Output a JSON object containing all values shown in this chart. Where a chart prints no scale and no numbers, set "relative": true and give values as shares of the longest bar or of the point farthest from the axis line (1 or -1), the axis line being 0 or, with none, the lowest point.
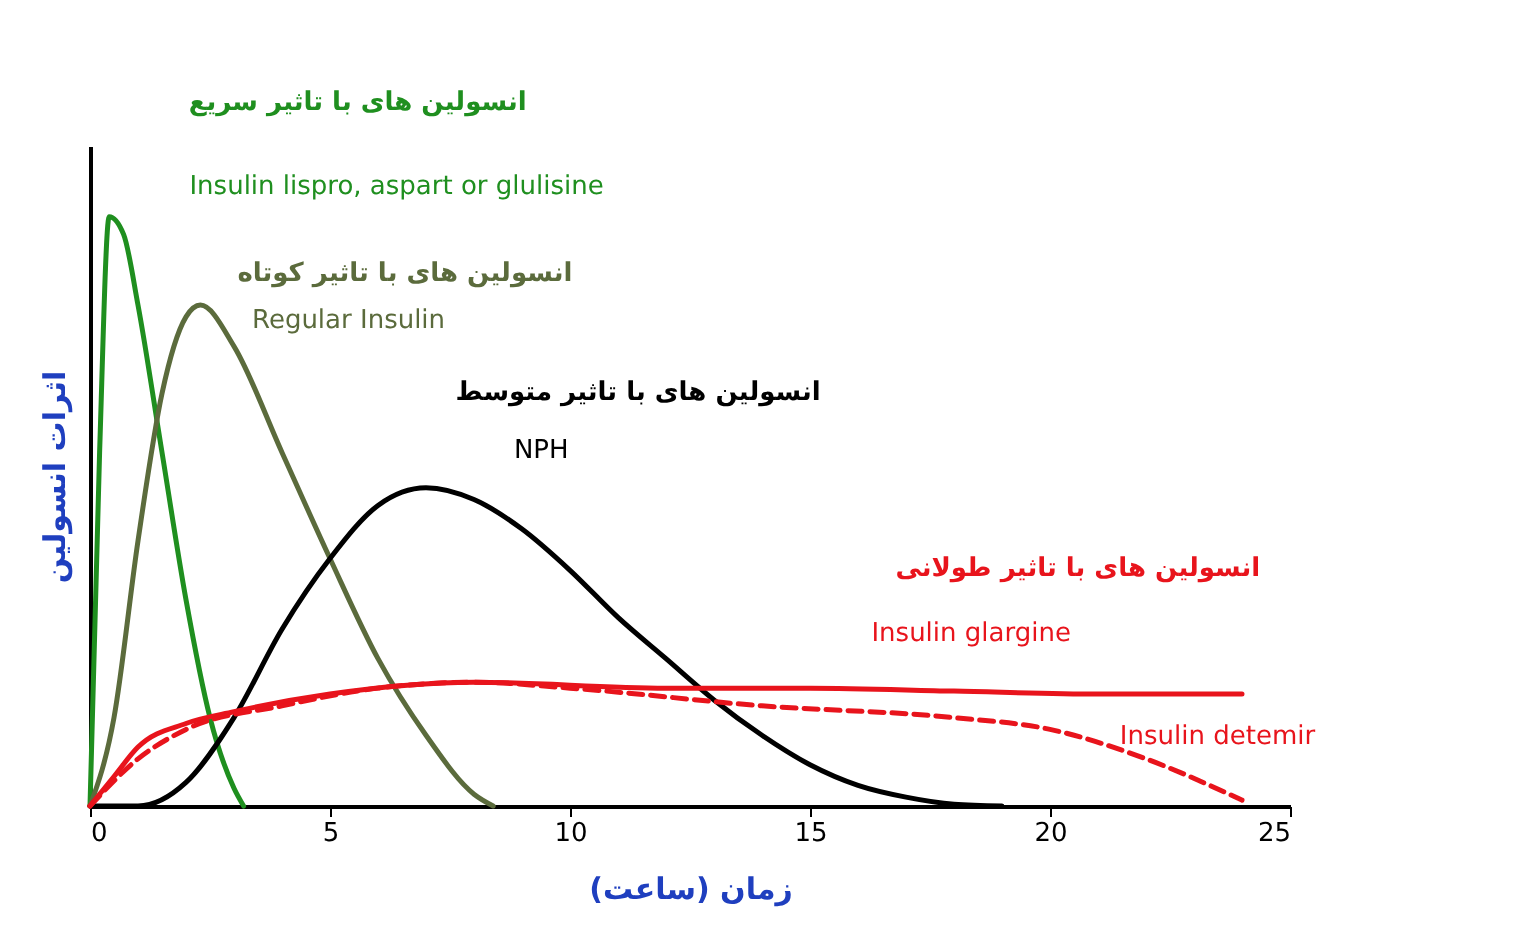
{
  "chart_data": {
    "type": "line",
    "relative": true,
    "xlabel": "زمان (ساعت)",
    "ylabel": "اثرات انسولین",
    "xlim": [
      0,
      25
    ],
    "xticks": [
      0,
      5,
      10,
      15,
      20,
      25
    ],
    "grid": false,
    "marker": "none",
    "series": [
      {
        "name": "Insulin lispro, aspart or glulisine",
        "color": "#1f8f1f",
        "line_style": "solid",
        "x": [
          0,
          0.2,
          0.4,
          0.7,
          1,
          1.5,
          2,
          2.5,
          3,
          3.2
        ],
        "values": [
          0,
          0.6,
          1.0,
          0.97,
          0.85,
          0.6,
          0.35,
          0.15,
          0.03,
          0
        ]
      },
      {
        "name": "Regular Insulin",
        "color": "#5b6b3c",
        "line_style": "solid",
        "x": [
          0,
          0.5,
          1,
          1.5,
          2,
          2.3,
          3,
          4,
          5,
          6,
          7,
          8,
          8.4
        ],
        "values": [
          0,
          0.15,
          0.45,
          0.7,
          0.83,
          0.85,
          0.78,
          0.6,
          0.42,
          0.25,
          0.12,
          0.02,
          0
        ]
      },
      {
        "name": "NPH",
        "color": "#000000",
        "line_style": "solid",
        "x": [
          0,
          1,
          2,
          3,
          4,
          5,
          6,
          7,
          8,
          9,
          10,
          11,
          12,
          13,
          14,
          15,
          16,
          17,
          18,
          19
        ],
        "values": [
          0,
          0,
          0.04,
          0.15,
          0.3,
          0.42,
          0.51,
          0.54,
          0.52,
          0.47,
          0.4,
          0.32,
          0.25,
          0.18,
          0.12,
          0.07,
          0.035,
          0.015,
          0.003,
          0
        ]
      },
      {
        "name": "Insulin glargine",
        "color": "#e8141c",
        "line_style": "solid",
        "x": [
          0,
          0.5,
          1,
          2,
          3,
          5,
          8,
          12,
          15,
          18,
          21,
          24
        ],
        "values": [
          0,
          0.05,
          0.1,
          0.14,
          0.16,
          0.19,
          0.21,
          0.2,
          0.2,
          0.195,
          0.19,
          0.19
        ]
      },
      {
        "name": "Insulin detemir",
        "color": "#e8141c",
        "line_style": "dashed",
        "x": [
          0,
          1,
          2,
          4,
          6,
          8,
          10,
          14,
          18,
          20,
          22,
          24
        ],
        "values": [
          0,
          0.08,
          0.13,
          0.17,
          0.2,
          0.21,
          0.2,
          0.17,
          0.15,
          0.13,
          0.08,
          0.01
        ]
      }
    ],
    "annotations": [
      "انسولین های با تاثیر سریع",
      "انسولین های با تاثیر کوتاه",
      "انسولین های با تاثیر متوسط",
      "انسولین های با تاثیر طولانی"
    ]
  }
}
